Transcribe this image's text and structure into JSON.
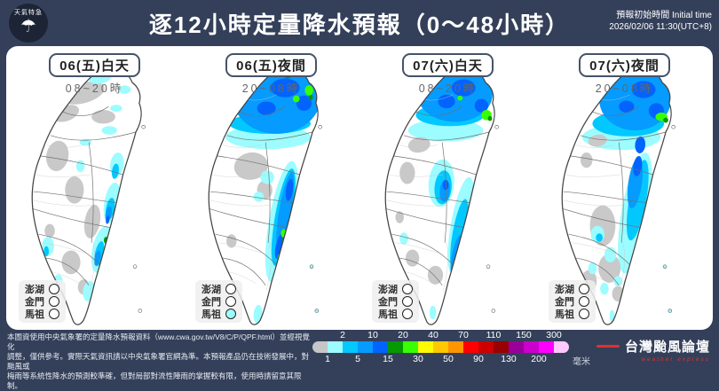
{
  "header": {
    "title": "逐12小時定量降水預報（0～48小時）",
    "logo_text": "天氣特急",
    "initial_time_label": "預報初始時間 Initial time",
    "initial_time_value": "2026/02/06  11:30(UTC+8)"
  },
  "panels": [
    {
      "label": "06(五)白天",
      "time": "08~20時",
      "islands": [
        {
          "name": "澎湖",
          "fill": "#ffffff"
        },
        {
          "name": "金門",
          "fill": "#ffffff"
        },
        {
          "name": "馬祖",
          "fill": "#ffffff"
        }
      ],
      "blobs": [
        [
          88,
          34,
          26,
          12,
          -15,
          "#c9c9c9"
        ],
        [
          68,
          58,
          16,
          9,
          -20,
          "#c9c9c9"
        ],
        [
          112,
          62,
          14,
          8,
          0,
          "#c9c9c9"
        ],
        [
          58,
          108,
          13,
          18,
          10,
          "#c9c9c9"
        ],
        [
          78,
          148,
          11,
          16,
          0,
          "#c9c9c9"
        ],
        [
          99,
          185,
          9,
          20,
          10,
          "#c9c9c9"
        ],
        [
          74,
          233,
          11,
          14,
          0,
          "#c9c9c9"
        ],
        [
          89,
          262,
          7,
          9,
          0,
          "#c9c9c9"
        ],
        [
          49,
          196,
          6,
          8,
          0,
          "#c9c9c9"
        ],
        [
          108,
          17,
          13,
          6,
          -10,
          "#9cfcff"
        ],
        [
          137,
          30,
          7,
          5,
          0,
          "#9cfcff"
        ],
        [
          127,
          52,
          7,
          4,
          0,
          "#9cfcff"
        ],
        [
          119,
          78,
          9,
          5,
          0,
          "#9cfcff"
        ],
        [
          91,
          92,
          7,
          4,
          0,
          "#9cfcff"
        ],
        [
          85,
          120,
          5,
          7,
          0,
          "#9cfcff"
        ],
        [
          128,
          118,
          8,
          14,
          8,
          "#9cfcff"
        ],
        [
          122,
          163,
          9,
          24,
          10,
          "#9cfcff"
        ],
        [
          110,
          218,
          11,
          28,
          12,
          "#9cfcff"
        ],
        [
          95,
          267,
          7,
          12,
          8,
          "#9cfcff"
        ],
        [
          47,
          214,
          7,
          11,
          0,
          "#9cfcff"
        ],
        [
          41,
          244,
          5,
          7,
          0,
          "#9cfcff"
        ],
        [
          59,
          254,
          5,
          7,
          0,
          "#9cfcff"
        ],
        [
          126,
          126,
          4,
          9,
          8,
          "#03c8ff"
        ],
        [
          120,
          170,
          5,
          13,
          10,
          "#03c8ff"
        ],
        [
          107,
          223,
          5,
          15,
          12,
          "#03c8ff"
        ],
        [
          45,
          220,
          3,
          6,
          0,
          "#03c8ff"
        ],
        [
          118,
          176,
          3.5,
          9,
          10,
          "#059bff"
        ],
        [
          105,
          228,
          3.5,
          9,
          12,
          "#059bff"
        ],
        [
          117,
          183,
          2,
          5,
          10,
          "#0363ff"
        ],
        [
          115,
          207,
          2.5,
          4,
          0,
          "#059902"
        ]
      ],
      "islets": [
        [
          159,
          74,
          "#ffffff"
        ],
        [
          57,
          270,
          "#ffffff"
        ],
        [
          149,
          238,
          "#ffffff"
        ],
        [
          155,
          290,
          "#ffffff"
        ]
      ]
    },
    {
      "label": "06(五)夜間",
      "time": "20~08時",
      "islands": [
        {
          "name": "澎湖",
          "fill": "#ffffff"
        },
        {
          "name": "金門",
          "fill": "#ffffff"
        },
        {
          "name": "馬祖",
          "fill": "#9cfcff"
        }
      ],
      "blobs": [
        [
          98,
          86,
          50,
          14,
          0,
          "#9cfcff"
        ],
        [
          100,
          70,
          48,
          12,
          0,
          "#03c8ff"
        ],
        [
          108,
          38,
          52,
          44,
          0,
          "#059bff"
        ],
        [
          118,
          28,
          17,
          11,
          0,
          "#0363ff"
        ],
        [
          140,
          46,
          9,
          9,
          0,
          "#0363ff"
        ],
        [
          96,
          52,
          11,
          8,
          0,
          "#0363ff"
        ],
        [
          121,
          14,
          4,
          3,
          0,
          "#059902"
        ],
        [
          148,
          39,
          2.5,
          3.5,
          0,
          "#059902"
        ],
        [
          112,
          11,
          8,
          4,
          0,
          "#39ff03"
        ],
        [
          146,
          31,
          5,
          6,
          0,
          "#39ff03"
        ],
        [
          131,
          41,
          4,
          4,
          0,
          "#39ff03"
        ],
        [
          78,
          120,
          20,
          16,
          -10,
          "#c9c9c9"
        ],
        [
          94,
          148,
          9,
          11,
          0,
          "#c9c9c9"
        ],
        [
          55,
          208,
          6,
          8,
          0,
          "#c9c9c9"
        ],
        [
          97,
          133,
          8,
          8,
          0,
          "#9cfcff"
        ],
        [
          87,
          156,
          6,
          6,
          0,
          "#9cfcff"
        ],
        [
          114,
          185,
          15,
          72,
          10,
          "#9cfcff"
        ],
        [
          116,
          180,
          10,
          58,
          10,
          "#03c8ff"
        ],
        [
          118,
          172,
          7,
          45,
          10,
          "#059bff"
        ],
        [
          123,
          148,
          4,
          13,
          8,
          "#0363ff"
        ],
        [
          111,
          214,
          4,
          15,
          12,
          "#0363ff"
        ],
        [
          116,
          199,
          3,
          5,
          0,
          "#39ff03"
        ],
        [
          112,
          227,
          3,
          4,
          0,
          "#39ff03"
        ],
        [
          117,
          207,
          2.5,
          4,
          0,
          "#059902"
        ],
        [
          86,
          294,
          5,
          11,
          5,
          "#9cfcff"
        ]
      ],
      "islets": [
        [
          159,
          74,
          "#ffffff"
        ],
        [
          57,
          270,
          "#ffffff"
        ],
        [
          149,
          238,
          "#9cfcff"
        ],
        [
          155,
          290,
          "#9cfcff"
        ]
      ]
    },
    {
      "label": "07(六)白天",
      "time": "08~20時",
      "islands": [
        {
          "name": "澎湖",
          "fill": "#ffffff"
        },
        {
          "name": "金門",
          "fill": "#ffffff"
        },
        {
          "name": "馬祖",
          "fill": "#ffffff"
        }
      ],
      "blobs": [
        [
          99,
          78,
          44,
          13,
          0,
          "#9cfcff"
        ],
        [
          104,
          60,
          40,
          13,
          0,
          "#03c8ff"
        ],
        [
          110,
          36,
          44,
          32,
          0,
          "#059bff"
        ],
        [
          120,
          28,
          14,
          10,
          0,
          "#0363ff"
        ],
        [
          141,
          49,
          8,
          8,
          0,
          "#0363ff"
        ],
        [
          100,
          44,
          10,
          8,
          0,
          "#0363ff"
        ],
        [
          108,
          10,
          5,
          3,
          0,
          "#39ff03"
        ],
        [
          147,
          60,
          6,
          6,
          0,
          "#39ff03"
        ],
        [
          116,
          40,
          3,
          3,
          0,
          "#39ff03"
        ],
        [
          151,
          64,
          2.5,
          3,
          0,
          "#059902"
        ],
        [
          68,
          95,
          13,
          9,
          -10,
          "#c9c9c9"
        ],
        [
          54,
          128,
          9,
          13,
          0,
          "#c9c9c9"
        ],
        [
          60,
          228,
          8,
          10,
          0,
          "#c9c9c9"
        ],
        [
          87,
          248,
          9,
          11,
          0,
          "#c9c9c9"
        ],
        [
          45,
          180,
          5,
          7,
          0,
          "#c9c9c9"
        ],
        [
          94,
          140,
          15,
          28,
          5,
          "#9cfcff"
        ],
        [
          96,
          145,
          10,
          20,
          5,
          "#03c8ff"
        ],
        [
          98,
          149,
          6,
          13,
          5,
          "#059bff"
        ],
        [
          99,
          142,
          3.5,
          6,
          0,
          "#0363ff"
        ],
        [
          117,
          190,
          12,
          58,
          10,
          "#9cfcff"
        ],
        [
          115,
          200,
          8,
          42,
          10,
          "#03c8ff"
        ],
        [
          112,
          224,
          5.5,
          24,
          12,
          "#059bff"
        ],
        [
          110,
          240,
          3.5,
          11,
          12,
          "#0363ff"
        ],
        [
          111,
          252,
          2.5,
          4,
          0,
          "#059902"
        ],
        [
          50,
          205,
          5,
          7,
          0,
          "#9cfcff"
        ],
        [
          84,
          292,
          4,
          8,
          0,
          "#9cfcff"
        ]
      ],
      "islets": [
        [
          159,
          74,
          "#ffffff"
        ],
        [
          57,
          270,
          "#ffffff"
        ],
        [
          149,
          238,
          "#ffffff"
        ],
        [
          155,
          290,
          "#ffffff"
        ]
      ]
    },
    {
      "label": "07(六)夜間",
      "time": "20~08時",
      "islands": [
        {
          "name": "澎湖",
          "fill": "#ffffff"
        },
        {
          "name": "金門",
          "fill": "#ffffff"
        },
        {
          "name": "馬祖",
          "fill": "#ffffff"
        }
      ],
      "blobs": [
        [
          98,
          86,
          46,
          15,
          0,
          "#9cfcff"
        ],
        [
          106,
          70,
          42,
          15,
          0,
          "#03c8ff"
        ],
        [
          114,
          42,
          42,
          36,
          0,
          "#059bff"
        ],
        [
          124,
          30,
          14,
          10,
          0,
          "#0363ff"
        ],
        [
          139,
          55,
          9,
          9,
          0,
          "#0363ff"
        ],
        [
          104,
          50,
          9,
          7,
          0,
          "#0363ff"
        ],
        [
          110,
          12,
          4,
          3,
          0,
          "#39ff03"
        ],
        [
          145,
          62,
          7,
          5,
          0,
          "#39ff03"
        ],
        [
          150,
          66,
          3,
          3,
          0,
          "#059902"
        ],
        [
          114,
          175,
          16,
          72,
          10,
          "#9cfcff"
        ],
        [
          117,
          160,
          10,
          48,
          10,
          "#03c8ff"
        ],
        [
          114,
          140,
          8,
          30,
          8,
          "#059bff"
        ],
        [
          117,
          120,
          5,
          12,
          8,
          "#0363ff"
        ],
        [
          120,
          95,
          6,
          10,
          5,
          "#0363ff"
        ],
        [
          70,
          90,
          11,
          7,
          -10,
          "#c9c9c9"
        ],
        [
          57,
          113,
          7,
          9,
          0,
          "#c9c9c9"
        ],
        [
          76,
          190,
          15,
          24,
          0,
          "#c9c9c9"
        ],
        [
          84,
          240,
          13,
          17,
          0,
          "#c9c9c9"
        ],
        [
          60,
          255,
          9,
          13,
          0,
          "#c9c9c9"
        ],
        [
          94,
          270,
          7,
          9,
          0,
          "#c9c9c9"
        ],
        [
          70,
          200,
          8,
          10,
          0,
          "#9cfcff"
        ],
        [
          85,
          224,
          7,
          9,
          0,
          "#9cfcff"
        ],
        [
          64,
          240,
          5,
          7,
          0,
          "#9cfcff"
        ],
        [
          78,
          264,
          5,
          7,
          0,
          "#9cfcff"
        ],
        [
          94,
          255,
          5,
          6,
          0,
          "#9cfcff"
        ],
        [
          87,
          296,
          3,
          7,
          0,
          "#9cfcff"
        ],
        [
          72,
          204,
          4,
          5,
          0,
          "#03c8ff"
        ]
      ],
      "islets": [
        [
          159,
          74,
          "#ffffff"
        ],
        [
          57,
          270,
          "#ffffff"
        ],
        [
          149,
          238,
          "#9cfcff"
        ],
        [
          155,
          290,
          "#9cfcff"
        ]
      ]
    }
  ],
  "legend": {
    "boundaries": [
      "1",
      "2",
      "5",
      "10",
      "15",
      "20",
      "30",
      "40",
      "50",
      "70",
      "90",
      "110",
      "130",
      "150",
      "200",
      "300"
    ],
    "colors": [
      "#c6c6c6",
      "#9cfcff",
      "#03c8ff",
      "#059bff",
      "#0363ff",
      "#059902",
      "#39ff03",
      "#fffb03",
      "#ffc800",
      "#ff9500",
      "#ff0000",
      "#cc0000",
      "#990000",
      "#990099",
      "#cc00cc",
      "#ff00ff",
      "#ffc8ff"
    ],
    "unit": "毫米"
  },
  "disclaimer": {
    "line1": "本圖資使用中央氣象署的定量降水預報資料（www.cwa.gov.tw/V8/C/P/QPF.html）並經視覺化",
    "line2": "調整，僅供參考。實際天氣資訊請以中央氣象署官網為準。本預報產品仍在技術發展中，對颱風或",
    "line3": "梅雨等系統性降水的預測較準確，但對局部對流性陣雨的掌握較有限，使用時請留意其限制。"
  },
  "footer_logo": {
    "brand": "台灣颱風論壇",
    "brand_sub": "weather express"
  }
}
